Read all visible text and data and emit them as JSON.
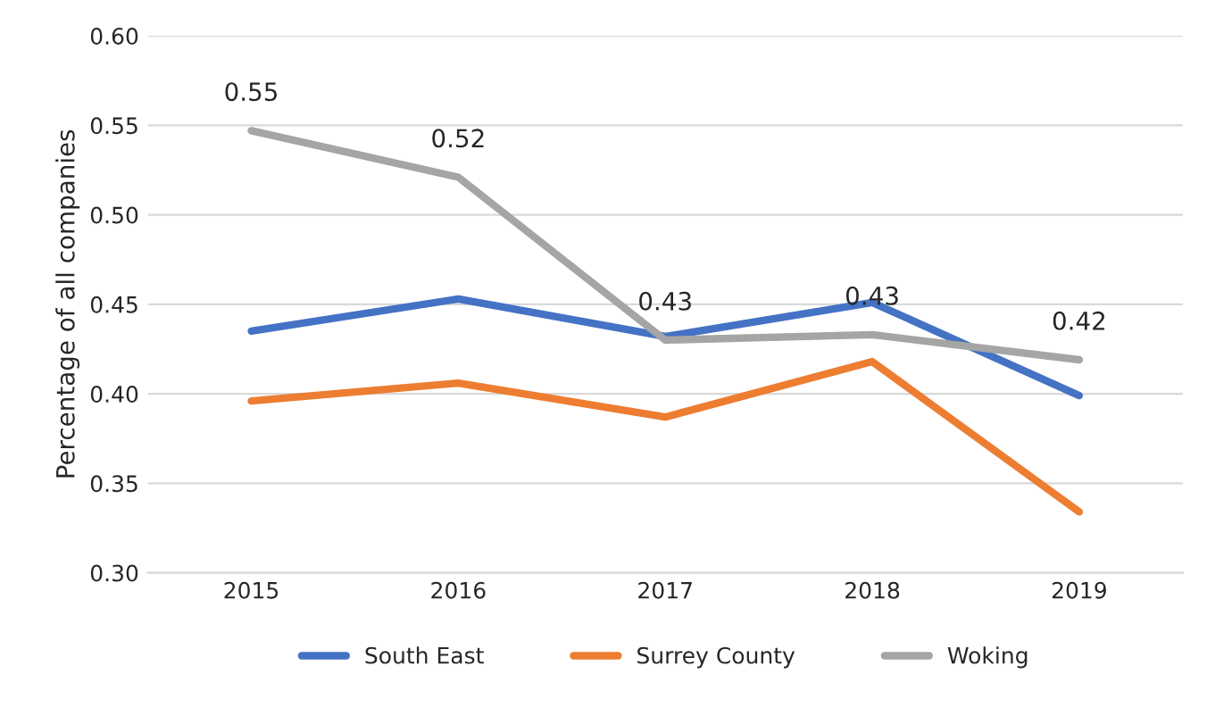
{
  "chart_data": {
    "type": "line",
    "ylabel": "Percentage of all companies",
    "categories": [
      "2015",
      "2016",
      "2017",
      "2018",
      "2019"
    ],
    "series": [
      {
        "name": "South East",
        "color": "#4472c4",
        "values": [
          0.435,
          0.453,
          0.432,
          0.451,
          0.399
        ]
      },
      {
        "name": "Surrey County",
        "color": "#ed7d31",
        "values": [
          0.396,
          0.406,
          0.387,
          0.418,
          0.334
        ]
      },
      {
        "name": "Woking",
        "color": "#a5a5a5",
        "values": [
          0.547,
          0.521,
          0.43,
          0.433,
          0.419
        ],
        "value_labels": [
          "0.55",
          "0.52",
          "0.43",
          "0.43",
          "0.42"
        ]
      }
    ],
    "ylim": [
      0.3,
      0.6
    ],
    "yticks": [
      "0.30",
      "0.35",
      "0.40",
      "0.45",
      "0.50",
      "0.55",
      "0.60"
    ],
    "grid": "y",
    "legend": "bottom",
    "marker": "none",
    "line_style": "solid"
  }
}
